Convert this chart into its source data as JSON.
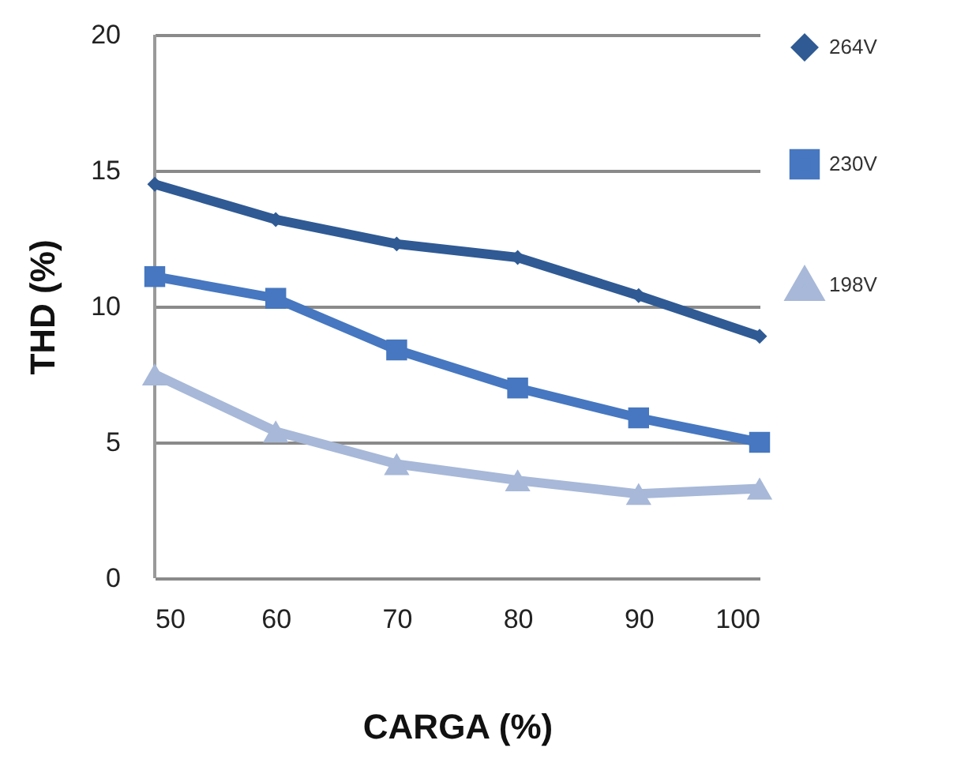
{
  "chart_data": {
    "type": "line",
    "xlabel": "CARGA (%)",
    "ylabel": "THD (%)",
    "x": [
      50,
      60,
      70,
      80,
      90,
      100
    ],
    "xlim": [
      50,
      100
    ],
    "xticks": [
      50,
      60,
      70,
      80,
      90,
      100
    ],
    "ylim": [
      0,
      20
    ],
    "yticks": [
      0,
      5,
      10,
      15,
      20
    ],
    "grid": "y",
    "legend": "right",
    "series": [
      {
        "name": "264V",
        "color": "#2f5a94",
        "marker": "diamond",
        "values": [
          14.5,
          13.2,
          12.3,
          11.8,
          10.4,
          8.9
        ]
      },
      {
        "name": "230V",
        "color": "#4677c0",
        "marker": "square",
        "values": [
          11.1,
          10.3,
          8.4,
          7.0,
          5.9,
          5.0
        ]
      },
      {
        "name": "198V",
        "color": "#a7b8d8",
        "marker": "triangle",
        "values": [
          7.5,
          5.4,
          4.2,
          3.6,
          3.1,
          3.3
        ]
      }
    ]
  }
}
